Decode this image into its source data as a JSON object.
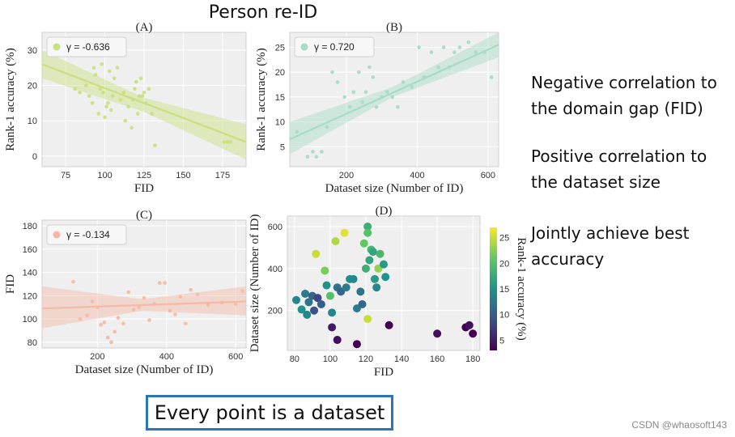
{
  "page_title": "Person re-ID",
  "notes": [
    {
      "line1": "Negative correlation to",
      "line2": "the domain gap (FID)"
    },
    {
      "line1": "Positive correlation to",
      "line2": "the dataset size"
    },
    {
      "line1": "Jointly achieve best",
      "line2": "accuracy"
    }
  ],
  "bottom_box": "Every point is a dataset",
  "watermark": "CSDN @whaosoft143",
  "chart_data": [
    {
      "type": "scatter",
      "panel": "(A)",
      "xlabel": "FID",
      "ylabel": "Rank-1 accuracy (%)",
      "legend": "γ = -0.636",
      "color": "#c8e07e",
      "xlim": [
        60,
        190
      ],
      "ylim": [
        -3,
        35
      ],
      "xticks": [
        75,
        100,
        125,
        150,
        175
      ],
      "yticks": [
        0,
        10,
        20,
        30
      ],
      "fit": {
        "x": [
          60,
          190
        ],
        "y": [
          26,
          4
        ]
      },
      "band": {
        "x": [
          60,
          125,
          190
        ],
        "lo": [
          22,
          12.5,
          -1
        ],
        "hi": [
          30,
          16.5,
          9
        ]
      },
      "points": [
        [
          81,
          19
        ],
        [
          84,
          18
        ],
        [
          88,
          20
        ],
        [
          90,
          17
        ],
        [
          92,
          15
        ],
        [
          93,
          25
        ],
        [
          94,
          23
        ],
        [
          96,
          12
        ],
        [
          97,
          19
        ],
        [
          98,
          26
        ],
        [
          99,
          18
        ],
        [
          100,
          11
        ],
        [
          101,
          14
        ],
        [
          102,
          15
        ],
        [
          103,
          24
        ],
        [
          104,
          13
        ],
        [
          105,
          17
        ],
        [
          106,
          22
        ],
        [
          108,
          25
        ],
        [
          110,
          16
        ],
        [
          112,
          18
        ],
        [
          113,
          10
        ],
        [
          115,
          14
        ],
        [
          117,
          8
        ],
        [
          118,
          16
        ],
        [
          119,
          19
        ],
        [
          120,
          21
        ],
        [
          121,
          12
        ],
        [
          122,
          17
        ],
        [
          123,
          22
        ],
        [
          124,
          17
        ],
        [
          125,
          18
        ],
        [
          126,
          15
        ],
        [
          128,
          19
        ],
        [
          130,
          12
        ],
        [
          132,
          3
        ],
        [
          176,
          4
        ],
        [
          178,
          4
        ],
        [
          180,
          4
        ]
      ]
    },
    {
      "type": "scatter",
      "panel": "(B)",
      "xlabel": "Dataset size (Number of ID)",
      "ylabel": "Rank-1 accuracy (%)",
      "legend": "γ = 0.720",
      "color": "#a6dcc5",
      "xlim": [
        40,
        630
      ],
      "ylim": [
        1,
        28
      ],
      "xticks": [
        200,
        400,
        600
      ],
      "yticks": [
        5,
        10,
        15,
        20,
        25
      ],
      "fit": {
        "x": [
          40,
          630
        ],
        "y": [
          6.5,
          25.5
        ]
      },
      "band": {
        "x": [
          40,
          330,
          630
        ],
        "lo": [
          3.5,
          15,
          23
        ],
        "hi": [
          10,
          17,
          28
        ]
      },
      "points": [
        [
          60,
          8
        ],
        [
          90,
          3
        ],
        [
          105,
          4
        ],
        [
          115,
          3
        ],
        [
          130,
          4
        ],
        [
          145,
          9
        ],
        [
          160,
          20
        ],
        [
          175,
          18
        ],
        [
          195,
          15
        ],
        [
          210,
          13
        ],
        [
          220,
          16
        ],
        [
          235,
          20
        ],
        [
          245,
          14
        ],
        [
          255,
          16
        ],
        [
          265,
          21
        ],
        [
          275,
          19
        ],
        [
          285,
          13
        ],
        [
          300,
          15
        ],
        [
          315,
          16
        ],
        [
          330,
          15
        ],
        [
          345,
          13
        ],
        [
          360,
          18
        ],
        [
          385,
          17
        ],
        [
          405,
          25
        ],
        [
          420,
          19
        ],
        [
          440,
          24
        ],
        [
          460,
          21
        ],
        [
          475,
          25
        ],
        [
          490,
          21
        ],
        [
          505,
          24
        ],
        [
          520,
          25
        ],
        [
          545,
          26
        ],
        [
          565,
          24
        ],
        [
          590,
          24
        ],
        [
          610,
          19
        ]
      ]
    },
    {
      "type": "scatter",
      "panel": "(C)",
      "xlabel": "Dataset size (Number of ID)",
      "ylabel": "FID",
      "legend": "γ = -0.134",
      "color": "#f4b9a4",
      "xlim": [
        40,
        630
      ],
      "ylim": [
        75,
        185
      ],
      "xticks": [
        200,
        400,
        600
      ],
      "yticks": [
        80,
        100,
        120,
        140,
        160,
        180
      ],
      "fit": {
        "x": [
          40,
          630
        ],
        "y": [
          109,
          115
        ]
      },
      "band": {
        "x": [
          40,
          330,
          630
        ],
        "lo": [
          92,
          107,
          103
        ],
        "hi": [
          128,
          117,
          128
        ]
      },
      "points": [
        [
          130,
          132
        ],
        [
          150,
          100
        ],
        [
          170,
          103
        ],
        [
          185,
          115
        ],
        [
          200,
          110
        ],
        [
          210,
          95
        ],
        [
          220,
          97
        ],
        [
          230,
          84
        ],
        [
          240,
          80
        ],
        [
          250,
          89
        ],
        [
          260,
          101
        ],
        [
          275,
          96
        ],
        [
          290,
          123
        ],
        [
          305,
          108
        ],
        [
          320,
          110
        ],
        [
          335,
          118
        ],
        [
          350,
          99
        ],
        [
          365,
          113
        ],
        [
          380,
          131
        ],
        [
          395,
          131
        ],
        [
          410,
          107
        ],
        [
          425,
          104
        ],
        [
          440,
          119
        ],
        [
          455,
          96
        ],
        [
          470,
          125
        ],
        [
          490,
          121
        ],
        [
          520,
          112
        ],
        [
          560,
          114
        ],
        [
          600,
          113
        ],
        [
          620,
          124
        ]
      ]
    },
    {
      "type": "scatter",
      "panel": "(D)",
      "xlabel": "FID",
      "ylabel": "Dataset size (Number of ID)",
      "colorbar_label": "Rank-1 accuracy (%)",
      "colorbar_range": [
        3,
        27
      ],
      "colorbar_ticks": [
        5,
        10,
        15,
        20,
        25
      ],
      "xlim": [
        76,
        184
      ],
      "ylim": [
        10,
        650
      ],
      "xticks": [
        80,
        100,
        120,
        140,
        160,
        180
      ],
      "yticks": [
        200,
        400,
        600
      ],
      "points": [
        [
          81,
          250,
          14
        ],
        [
          84,
          205,
          15
        ],
        [
          86,
          280,
          13
        ],
        [
          87,
          180,
          14
        ],
        [
          88,
          240,
          12
        ],
        [
          90,
          270,
          11
        ],
        [
          91,
          200,
          9
        ],
        [
          92,
          470,
          25
        ],
        [
          93,
          260,
          8
        ],
        [
          95,
          230,
          10
        ],
        [
          97,
          390,
          22
        ],
        [
          98,
          320,
          15
        ],
        [
          100,
          270,
          20
        ],
        [
          101,
          190,
          14
        ],
        [
          101,
          120,
          5
        ],
        [
          103,
          530,
          24
        ],
        [
          104,
          310,
          12
        ],
        [
          104,
          60,
          4
        ],
        [
          106,
          290,
          11
        ],
        [
          108,
          570,
          26
        ],
        [
          109,
          310,
          13
        ],
        [
          111,
          350,
          15
        ],
        [
          113,
          350,
          14
        ],
        [
          115,
          210,
          13
        ],
        [
          115,
          40,
          3
        ],
        [
          117,
          290,
          12
        ],
        [
          118,
          230,
          11
        ],
        [
          119,
          520,
          21
        ],
        [
          120,
          400,
          18
        ],
        [
          121,
          600,
          18
        ],
        [
          121,
          160,
          25
        ],
        [
          121,
          570,
          20
        ],
        [
          122,
          440,
          17
        ],
        [
          123,
          490,
          19
        ],
        [
          124,
          480,
          17
        ],
        [
          125,
          350,
          16
        ],
        [
          126,
          310,
          14
        ],
        [
          127,
          400,
          23
        ],
        [
          128,
          470,
          19
        ],
        [
          130,
          420,
          16
        ],
        [
          131,
          360,
          15
        ],
        [
          133,
          130,
          2
        ],
        [
          160,
          90,
          4
        ],
        [
          176,
          120,
          3
        ],
        [
          178,
          130,
          4
        ],
        [
          180,
          90,
          3
        ]
      ]
    }
  ]
}
